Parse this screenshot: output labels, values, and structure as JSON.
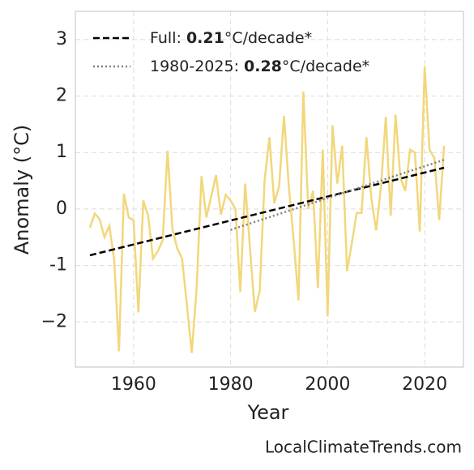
{
  "chart_data": {
    "type": "line",
    "x_label": "Year",
    "y_label": "Anomaly (°C)",
    "credit": "LocalClimateTrends.com",
    "xlim": [
      1948,
      2028
    ],
    "ylim": [
      -2.8,
      3.5
    ],
    "xticks": [
      1960,
      1980,
      2000,
      2020
    ],
    "yticks": [
      {
        "value": -2,
        "label": "−2"
      },
      -1,
      0,
      1,
      2,
      3
    ],
    "grid": true,
    "legend": "upper left",
    "series": [
      {
        "color": "#f2d77b",
        "x": [
          1951,
          1952,
          1953,
          1954,
          1955,
          1956,
          1957,
          1958,
          1959,
          1960,
          1961,
          1962,
          1963,
          1964,
          1965,
          1966,
          1967,
          1968,
          1969,
          1970,
          1971,
          1972,
          1973,
          1974,
          1975,
          1976,
          1977,
          1978,
          1979,
          1980,
          1981,
          1982,
          1983,
          1984,
          1985,
          1986,
          1987,
          1988,
          1989,
          1990,
          1991,
          1992,
          1993,
          1994,
          1995,
          1996,
          1997,
          1998,
          1999,
          2000,
          2001,
          2002,
          2003,
          2004,
          2005,
          2006,
          2007,
          2008,
          2009,
          2010,
          2011,
          2012,
          2013,
          2014,
          2015,
          2016,
          2017,
          2018,
          2019,
          2020,
          2021,
          2022,
          2023,
          2024
        ],
        "values": [
          -0.33,
          -0.08,
          -0.18,
          -0.5,
          -0.3,
          -0.9,
          -2.52,
          0.27,
          -0.15,
          -0.2,
          -1.83,
          0.15,
          -0.12,
          -0.88,
          -0.75,
          -0.55,
          1.03,
          -0.35,
          -0.7,
          -0.88,
          -1.7,
          -2.55,
          -1.4,
          0.58,
          -0.15,
          0.22,
          0.6,
          -0.1,
          0.25,
          0.15,
          0.0,
          -1.47,
          0.45,
          -0.7,
          -1.82,
          -1.45,
          0.5,
          1.27,
          0.1,
          0.4,
          1.65,
          0.4,
          -0.55,
          -1.62,
          2.08,
          0.0,
          0.32,
          -1.4,
          1.05,
          -1.9,
          1.48,
          0.45,
          1.12,
          -1.1,
          -0.6,
          -0.07,
          -0.07,
          1.27,
          0.2,
          -0.38,
          0.4,
          1.63,
          -0.12,
          1.67,
          0.55,
          0.32,
          1.05,
          1.0,
          -0.4,
          2.53,
          1.05,
          0.9,
          -0.2,
          1.12
        ]
      },
      {
        "name_parts": [
          "Full: ",
          "0.21",
          "°C/decade*"
        ],
        "color": "#000000",
        "dash": "dashed",
        "x": [
          1951,
          2024
        ],
        "values": [
          -0.82,
          0.73
        ]
      },
      {
        "name_parts": [
          "1980-2025: ",
          "0.28",
          "°C/decade*"
        ],
        "color": "#808080",
        "dash": "dotted",
        "x": [
          1980,
          2024
        ],
        "values": [
          -0.37,
          0.87
        ]
      }
    ]
  }
}
